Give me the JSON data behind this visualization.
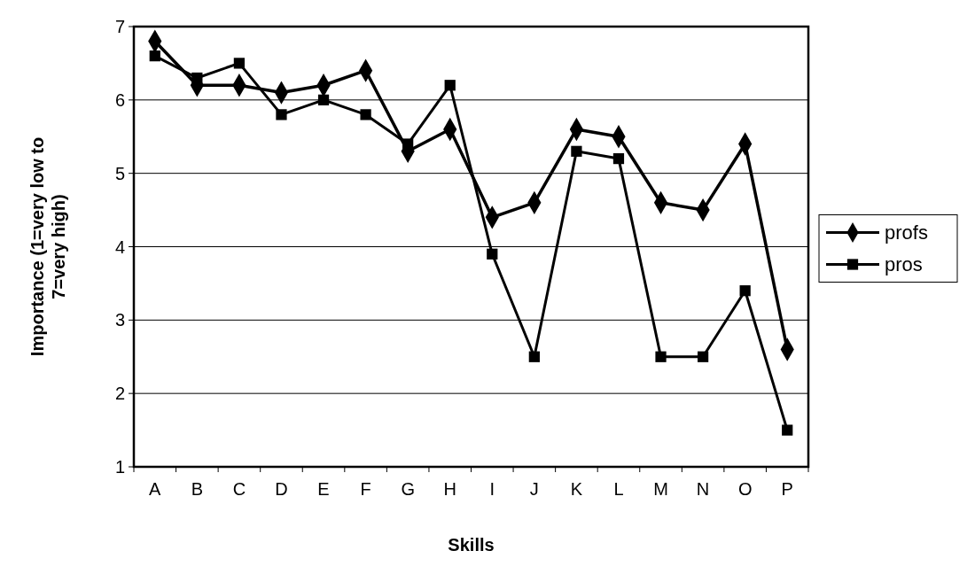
{
  "chart_data": {
    "type": "line",
    "xlabel": "Skills",
    "ylabel": "Importance (1=very low to 7=very high)",
    "categories": [
      "A",
      "B",
      "C",
      "D",
      "E",
      "F",
      "G",
      "H",
      "I",
      "J",
      "K",
      "L",
      "M",
      "N",
      "O",
      "P"
    ],
    "series": [
      {
        "name": "profs",
        "color": "#000000",
        "marker": "diamond",
        "values": [
          6.8,
          6.2,
          6.2,
          6.1,
          6.2,
          6.4,
          5.3,
          5.6,
          4.4,
          4.6,
          5.6,
          5.5,
          4.6,
          4.5,
          5.4,
          2.6
        ]
      },
      {
        "name": "pros",
        "color": "#000000",
        "marker": "square",
        "values": [
          6.6,
          6.3,
          6.5,
          5.8,
          6.0,
          5.8,
          5.4,
          6.2,
          3.9,
          2.5,
          5.3,
          5.2,
          2.5,
          2.5,
          3.4,
          1.5
        ]
      }
    ],
    "ylim": [
      1,
      7
    ],
    "yticks": [
      1,
      2,
      3,
      4,
      5,
      6,
      7
    ],
    "grid": "y",
    "legend": "right",
    "line_style": "solid"
  }
}
